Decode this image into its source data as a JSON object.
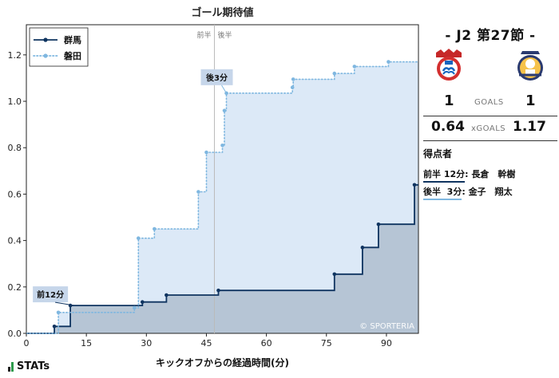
{
  "chart_data": {
    "type": "line",
    "title": "ゴール期待値",
    "xlabel": "キックオフからの経過時間(分)",
    "ylabel": "",
    "xlim": [
      0,
      98
    ],
    "ylim": [
      0,
      1.33
    ],
    "xticks": [
      0,
      15,
      30,
      45,
      60,
      75,
      90
    ],
    "yticks": [
      0.0,
      0.2,
      0.4,
      0.6,
      0.8,
      1.0,
      1.2
    ],
    "xtick_labels": [
      "0",
      "15",
      "30",
      "45",
      "60",
      "75",
      "90"
    ],
    "ytick_labels": [
      "0.0",
      "0.2",
      "0.4",
      "0.6",
      "0.8",
      "1.0",
      "1.2"
    ],
    "halftime_x": 47,
    "halftime_labels": [
      "前半",
      "後半"
    ],
    "legend_position": "top-left",
    "watermark": "© SPORTERIA",
    "series": [
      {
        "name": "群馬",
        "color": "#0f3460",
        "fill": "#b3c3d3",
        "style": "solid",
        "shots": [
          [
            7,
            0.03
          ],
          [
            11,
            0.12
          ],
          [
            29,
            0.135
          ],
          [
            35,
            0.165
          ],
          [
            48,
            0.185
          ],
          [
            77,
            0.255
          ],
          [
            84,
            0.37
          ],
          [
            88,
            0.47
          ],
          [
            97,
            0.64
          ],
          [
            98,
            0.64
          ]
        ]
      },
      {
        "name": "磐田",
        "color": "#7fb7e0",
        "fill": "#dce9f7",
        "style": "dotted",
        "shots": [
          [
            8,
            0.09
          ],
          [
            27,
            0.11
          ],
          [
            28,
            0.41
          ],
          [
            32,
            0.45
          ],
          [
            43,
            0.61
          ],
          [
            45,
            0.78
          ],
          [
            49,
            0.81
          ],
          [
            49.5,
            0.96
          ],
          [
            50,
            1.035
          ],
          [
            66.5,
            1.06
          ],
          [
            66.7,
            1.095
          ],
          [
            77,
            1.12
          ],
          [
            82,
            1.15
          ],
          [
            90.5,
            1.17
          ],
          [
            97.5,
            1.17
          ]
        ]
      }
    ],
    "annotations": [
      {
        "text": "前12分",
        "x": 12,
        "y": 0.12,
        "series": "群馬"
      },
      {
        "text": "後3分",
        "x": 50,
        "y": 1.035,
        "series": "磐田"
      }
    ]
  },
  "match": {
    "title": "- J2 第27節 -",
    "home_score": "1",
    "away_score": "1",
    "goals_label": "GOALS",
    "home_xg": "0.64",
    "away_xg": "1.17",
    "xg_label": "xGOALS",
    "home_color": "#0f3460",
    "away_color": "#7fb7e0"
  },
  "scorers": {
    "heading": "得点者",
    "items": [
      {
        "time": "前半 12分",
        "name": "長倉　幹樹",
        "team": "home"
      },
      {
        "time": "後半  3分",
        "name": "金子　翔太",
        "team": "away"
      }
    ]
  },
  "brand": {
    "text": "STATs"
  }
}
